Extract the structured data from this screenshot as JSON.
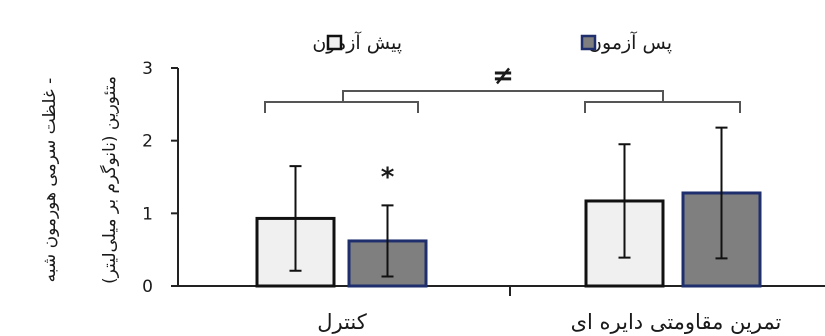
{
  "chart_data": {
    "type": "bar",
    "ylabel": [
      "غلظت سرمی هورمون شبه -",
      "متئورین  (نانوگرم بر میلی‌لیتر)"
    ],
    "ylim": [
      0,
      3
    ],
    "yticks": [
      0,
      1,
      2,
      3
    ],
    "categories": [
      "کنترل",
      "تمرین مقاومتی دایره ای"
    ],
    "series": [
      {
        "name": "پیش آزمون",
        "fill": "#f0f0f0",
        "stroke": "#111111",
        "values": [
          0.93,
          1.17
        ],
        "errors": [
          0.72,
          0.78
        ]
      },
      {
        "name": "پس آزمون",
        "fill": "#7f7f7f",
        "stroke": "#1f2f6e",
        "values": [
          0.62,
          1.28
        ],
        "errors": [
          0.49,
          0.9
        ]
      }
    ],
    "annotations": [
      {
        "text": "*",
        "category": 0,
        "series": 1
      },
      {
        "text": "≠",
        "between_categories": [
          0,
          1
        ]
      }
    ],
    "legend_position": "top",
    "grid": false
  }
}
